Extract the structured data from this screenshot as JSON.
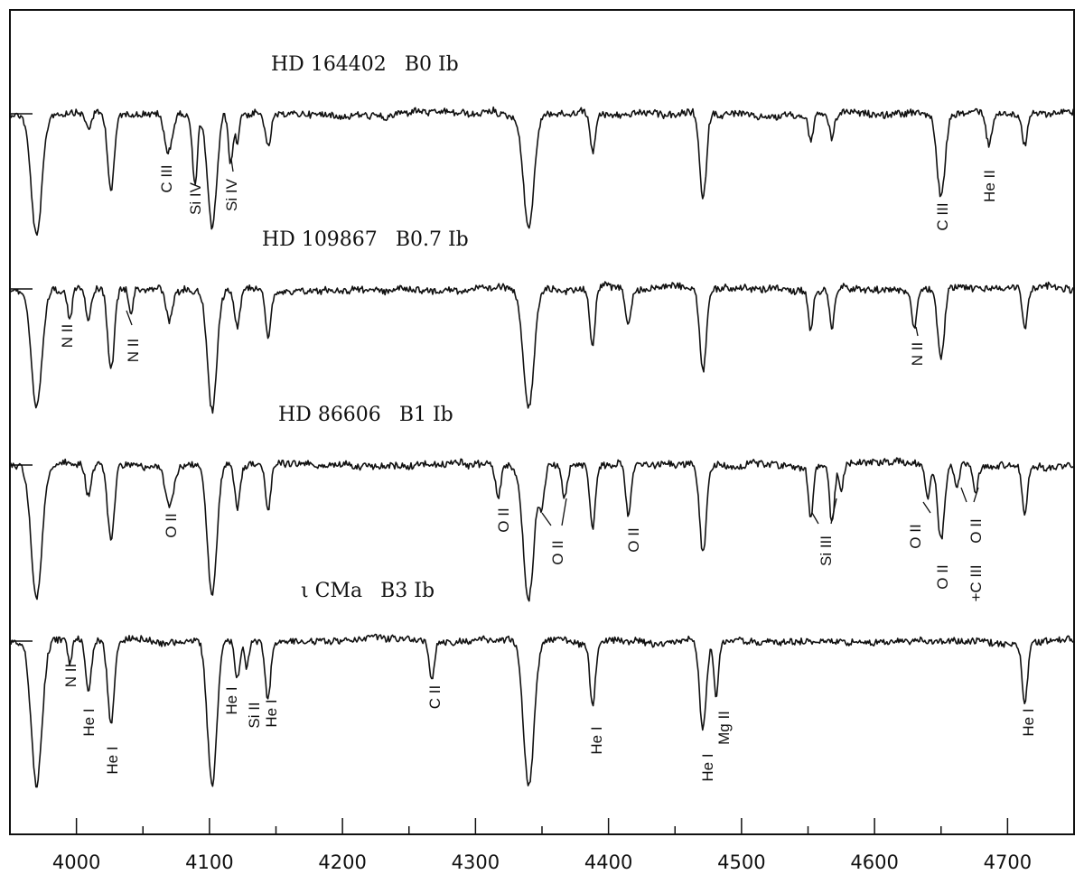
{
  "chart_data": {
    "type": "line",
    "xlim": [
      3950,
      4750
    ],
    "x_ticks": [
      4000,
      4100,
      4200,
      4300,
      4400,
      4500,
      4600,
      4700
    ],
    "x_tick_labels": [
      "4000",
      "4100",
      "4200",
      "4300",
      "4400",
      "4500",
      "4600",
      "4700"
    ],
    "grid": false,
    "series": [
      {
        "name": "HD 164402 B0 Ib",
        "label_parts": [
          "HD 164402",
          "B0 Ib"
        ],
        "lines": [
          {
            "wl": 3970,
            "depth": 0.95,
            "width": 4
          },
          {
            "wl": 4009,
            "depth": 0.12,
            "width": 2
          },
          {
            "wl": 4026,
            "depth": 0.62,
            "width": 2.5
          },
          {
            "wl": 4069,
            "depth": 0.3,
            "width": 3
          },
          {
            "wl": 4089,
            "depth": 0.55,
            "width": 1.8
          },
          {
            "wl": 4102,
            "depth": 0.9,
            "width": 3.5
          },
          {
            "wl": 4116,
            "depth": 0.4,
            "width": 1.8
          },
          {
            "wl": 4121,
            "depth": 0.22,
            "width": 1.5
          },
          {
            "wl": 4144,
            "depth": 0.25,
            "width": 2
          },
          {
            "wl": 4340,
            "depth": 0.9,
            "width": 4
          },
          {
            "wl": 4388,
            "depth": 0.3,
            "width": 2
          },
          {
            "wl": 4471,
            "depth": 0.7,
            "width": 2.5
          },
          {
            "wl": 4552,
            "depth": 0.22,
            "width": 1.8
          },
          {
            "wl": 4568,
            "depth": 0.2,
            "width": 1.8
          },
          {
            "wl": 4650,
            "depth": 0.65,
            "width": 3
          },
          {
            "wl": 4686,
            "depth": 0.25,
            "width": 2
          },
          {
            "wl": 4713,
            "depth": 0.25,
            "width": 2
          }
        ],
        "annotations": [
          "C III",
          "Si IV",
          "Si IV",
          "C III",
          "He II"
        ]
      },
      {
        "name": "HD 109867 B0.7 Ib",
        "label_parts": [
          "HD 109867",
          "B0.7 Ib"
        ],
        "lines": [
          {
            "wl": 3970,
            "depth": 0.95,
            "width": 4
          },
          {
            "wl": 3995,
            "depth": 0.25,
            "width": 1.8
          },
          {
            "wl": 4009,
            "depth": 0.25,
            "width": 2
          },
          {
            "wl": 4026,
            "depth": 0.65,
            "width": 2.5
          },
          {
            "wl": 4041,
            "depth": 0.2,
            "width": 1.5
          },
          {
            "wl": 4070,
            "depth": 0.25,
            "width": 2.5
          },
          {
            "wl": 4102,
            "depth": 0.95,
            "width": 3.5
          },
          {
            "wl": 4121,
            "depth": 0.3,
            "width": 2
          },
          {
            "wl": 4144,
            "depth": 0.35,
            "width": 2
          },
          {
            "wl": 4340,
            "depth": 0.95,
            "width": 4
          },
          {
            "wl": 4388,
            "depth": 0.45,
            "width": 2
          },
          {
            "wl": 4415,
            "depth": 0.3,
            "width": 2
          },
          {
            "wl": 4471,
            "depth": 0.65,
            "width": 2.5
          },
          {
            "wl": 4552,
            "depth": 0.35,
            "width": 1.8
          },
          {
            "wl": 4568,
            "depth": 0.3,
            "width": 1.8
          },
          {
            "wl": 4630,
            "depth": 0.3,
            "width": 1.8
          },
          {
            "wl": 4650,
            "depth": 0.55,
            "width": 2.5
          },
          {
            "wl": 4713,
            "depth": 0.35,
            "width": 2
          }
        ],
        "annotations": [
          "N II",
          "N II",
          "N II"
        ]
      },
      {
        "name": "HD 86606 B1 Ib",
        "label_parts": [
          "HD 86606",
          "B1 Ib"
        ],
        "lines": [
          {
            "wl": 3970,
            "depth": 1.05,
            "width": 4
          },
          {
            "wl": 4009,
            "depth": 0.25,
            "width": 2
          },
          {
            "wl": 4026,
            "depth": 0.6,
            "width": 2.5
          },
          {
            "wl": 4070,
            "depth": 0.32,
            "width": 3
          },
          {
            "wl": 4102,
            "depth": 1.05,
            "width": 3.5
          },
          {
            "wl": 4121,
            "depth": 0.35,
            "width": 2
          },
          {
            "wl": 4144,
            "depth": 0.38,
            "width": 2
          },
          {
            "wl": 4317,
            "depth": 0.25,
            "width": 2
          },
          {
            "wl": 4340,
            "depth": 1.05,
            "width": 4
          },
          {
            "wl": 4350,
            "depth": 0.3,
            "width": 2
          },
          {
            "wl": 4367,
            "depth": 0.25,
            "width": 2
          },
          {
            "wl": 4388,
            "depth": 0.5,
            "width": 2
          },
          {
            "wl": 4415,
            "depth": 0.4,
            "width": 2
          },
          {
            "wl": 4471,
            "depth": 0.7,
            "width": 2.5
          },
          {
            "wl": 4552,
            "depth": 0.4,
            "width": 1.8
          },
          {
            "wl": 4568,
            "depth": 0.45,
            "width": 1.8
          },
          {
            "wl": 4575,
            "depth": 0.2,
            "width": 1.5
          },
          {
            "wl": 4640,
            "depth": 0.25,
            "width": 1.8
          },
          {
            "wl": 4650,
            "depth": 0.6,
            "width": 2.5
          },
          {
            "wl": 4662,
            "depth": 0.2,
            "width": 1.8
          },
          {
            "wl": 4676,
            "depth": 0.22,
            "width": 1.8
          },
          {
            "wl": 4713,
            "depth": 0.38,
            "width": 2
          }
        ],
        "annotations": [
          "O II",
          "O II",
          "O II",
          "O II",
          "Si III",
          "O II",
          "O II",
          "+C III",
          "O II"
        ]
      },
      {
        "name": "ι CMa B3 Ib",
        "label_parts": [
          "ι CMa",
          "B3 Ib"
        ],
        "lines": [
          {
            "wl": 3970,
            "depth": 1.15,
            "width": 4
          },
          {
            "wl": 3995,
            "depth": 0.2,
            "width": 1.5
          },
          {
            "wl": 4009,
            "depth": 0.4,
            "width": 2
          },
          {
            "wl": 4026,
            "depth": 0.65,
            "width": 2.5
          },
          {
            "wl": 4102,
            "depth": 1.15,
            "width": 3.5
          },
          {
            "wl": 4121,
            "depth": 0.3,
            "width": 2
          },
          {
            "wl": 4128,
            "depth": 0.2,
            "width": 1.5
          },
          {
            "wl": 4144,
            "depth": 0.45,
            "width": 2
          },
          {
            "wl": 4267,
            "depth": 0.3,
            "width": 2
          },
          {
            "wl": 4340,
            "depth": 1.15,
            "width": 4
          },
          {
            "wl": 4388,
            "depth": 0.5,
            "width": 2
          },
          {
            "wl": 4471,
            "depth": 0.7,
            "width": 2.5
          },
          {
            "wl": 4481,
            "depth": 0.45,
            "width": 1.8
          },
          {
            "wl": 4713,
            "depth": 0.5,
            "width": 2
          }
        ],
        "annotations": [
          "N II",
          "He I",
          "He I",
          "He I",
          "Si II",
          "He I",
          "C II",
          "He I",
          "He I",
          "Mg II",
          "He I"
        ]
      }
    ]
  }
}
